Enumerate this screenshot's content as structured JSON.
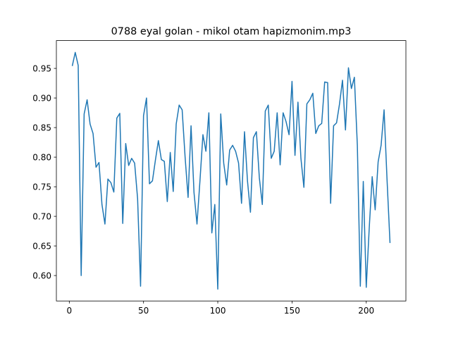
{
  "chart_data": {
    "type": "line",
    "title": "0788 eyal golan - mikol otam hapizmonim.mp3",
    "x": [
      2,
      4,
      6,
      8,
      10,
      12,
      14,
      16,
      18,
      20,
      22,
      24,
      26,
      28,
      30,
      32,
      34,
      36,
      38,
      40,
      42,
      44,
      46,
      48,
      50,
      52,
      54,
      56,
      58,
      60,
      62,
      64,
      66,
      68,
      70,
      72,
      74,
      76,
      78,
      80,
      82,
      84,
      86,
      88,
      90,
      92,
      94,
      96,
      98,
      100,
      102,
      104,
      106,
      108,
      110,
      112,
      114,
      116,
      118,
      120,
      122,
      124,
      126,
      128,
      130,
      132,
      134,
      136,
      138,
      140,
      142,
      144,
      146,
      148,
      150,
      152,
      154,
      156,
      158,
      160,
      162,
      164,
      166,
      168,
      170,
      172,
      174,
      176,
      178,
      180,
      182,
      184,
      186,
      188,
      190,
      192,
      194,
      196,
      198,
      200,
      202,
      204,
      206,
      208,
      210,
      212,
      214,
      216
    ],
    "series": [
      {
        "color": "#1f77b4",
        "values": [
          0.954,
          0.977,
          0.955,
          0.6,
          0.873,
          0.897,
          0.856,
          0.84,
          0.783,
          0.791,
          0.72,
          0.687,
          0.763,
          0.757,
          0.741,
          0.866,
          0.874,
          0.688,
          0.823,
          0.786,
          0.798,
          0.79,
          0.73,
          0.582,
          0.87,
          0.9,
          0.755,
          0.76,
          0.795,
          0.828,
          0.796,
          0.793,
          0.725,
          0.808,
          0.742,
          0.856,
          0.888,
          0.88,
          0.8,
          0.732,
          0.853,
          0.74,
          0.687,
          0.76,
          0.838,
          0.81,
          0.875,
          0.672,
          0.72,
          0.577,
          0.873,
          0.79,
          0.753,
          0.812,
          0.82,
          0.81,
          0.79,
          0.722,
          0.843,
          0.76,
          0.707,
          0.833,
          0.843,
          0.765,
          0.72,
          0.878,
          0.888,
          0.798,
          0.81,
          0.875,
          0.787,
          0.875,
          0.86,
          0.838,
          0.928,
          0.803,
          0.893,
          0.798,
          0.749,
          0.89,
          0.897,
          0.908,
          0.84,
          0.853,
          0.857,
          0.927,
          0.926,
          0.722,
          0.853,
          0.858,
          0.89,
          0.93,
          0.846,
          0.951,
          0.916,
          0.935,
          0.82,
          0.582,
          0.759,
          0.58,
          0.68,
          0.767,
          0.711,
          0.792,
          0.82,
          0.88,
          0.762,
          0.655
        ]
      }
    ],
    "xlim": [
      -8.7,
      226.7
    ],
    "ylim": [
      0.557,
      0.997
    ],
    "xticks": [
      0,
      50,
      100,
      150,
      200
    ],
    "yticks": [
      {
        "value": 0.6,
        "label": "0.60"
      },
      0.65,
      {
        "value": 0.7,
        "label": "0.70"
      },
      0.75,
      {
        "value": 0.8,
        "label": "0.80"
      },
      0.85,
      {
        "value": 0.9,
        "label": "0.90"
      },
      0.95
    ],
    "grid": false
  }
}
